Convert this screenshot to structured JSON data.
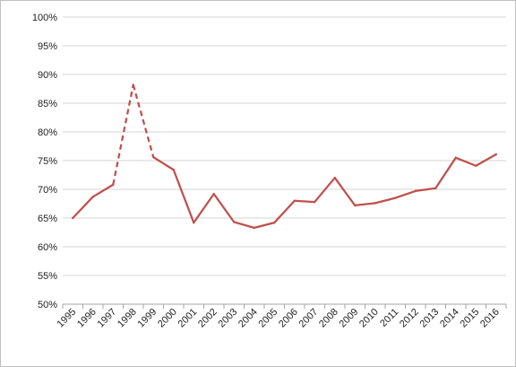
{
  "chart_data": {
    "type": "line",
    "title": "",
    "xlabel": "",
    "ylabel": "",
    "categories": [
      "1995",
      "1996",
      "1997",
      "1998",
      "1999",
      "2000",
      "2001",
      "2002",
      "2003",
      "2004",
      "2005",
      "2006",
      "2007",
      "2008",
      "2009",
      "2010",
      "2011",
      "2012",
      "2013",
      "2014",
      "2015",
      "2016"
    ],
    "series": [
      {
        "values": [
          65.0,
          68.7,
          70.8,
          88.2,
          75.6,
          73.4,
          64.2,
          69.2,
          64.3,
          63.3,
          64.2,
          68.0,
          67.8,
          72.0,
          67.2,
          67.6,
          68.5,
          69.7,
          70.2,
          75.5,
          74.1,
          76.1
        ],
        "dashed_segments": [
          [
            2,
            3
          ],
          [
            3,
            4
          ]
        ],
        "color": "#c0504d"
      }
    ],
    "ylim": [
      50,
      100
    ],
    "yticks": [
      "50%",
      "55%",
      "60%",
      "65%",
      "70%",
      "75%",
      "80%",
      "85%",
      "90%",
      "95%",
      "100%"
    ],
    "grid": true,
    "legend": "none"
  }
}
